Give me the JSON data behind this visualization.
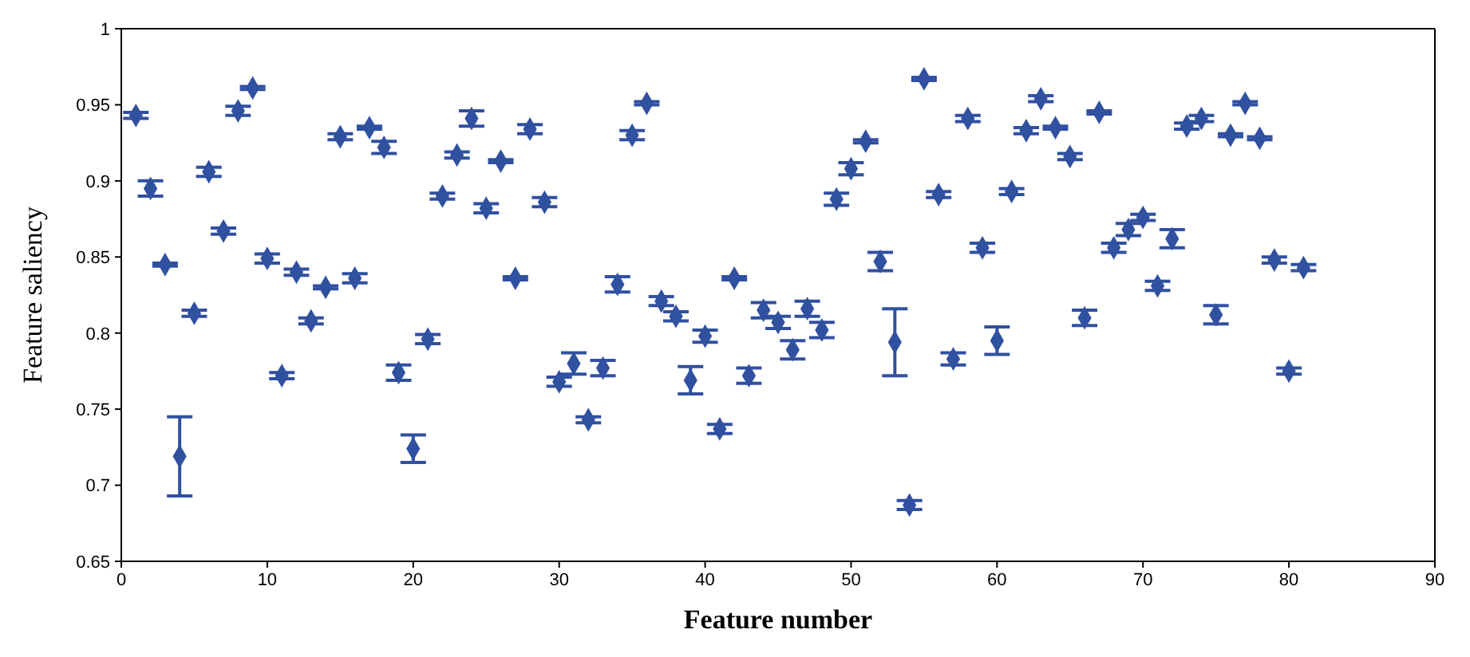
{
  "chart_data": {
    "type": "scatter",
    "xlabel": "Feature number",
    "ylabel": "Feature saliency",
    "x": [
      1,
      2,
      3,
      4,
      5,
      6,
      7,
      8,
      9,
      10,
      11,
      12,
      13,
      14,
      15,
      16,
      17,
      18,
      19,
      20,
      21,
      22,
      23,
      24,
      25,
      26,
      27,
      28,
      29,
      30,
      31,
      32,
      33,
      34,
      35,
      36,
      37,
      38,
      39,
      40,
      41,
      42,
      43,
      44,
      45,
      46,
      47,
      48,
      49,
      50,
      51,
      52,
      53,
      54,
      55,
      56,
      57,
      58,
      59,
      60,
      61,
      62,
      63,
      64,
      65,
      66,
      67,
      68,
      69,
      70,
      71,
      72,
      73,
      74,
      75,
      76,
      77,
      78,
      79,
      80,
      81
    ],
    "series": [
      {
        "color": "#3050a0",
        "values": [
          0.943,
          0.895,
          0.845,
          0.719,
          0.813,
          0.906,
          0.867,
          0.946,
          0.961,
          0.849,
          0.772,
          0.84,
          0.808,
          0.83,
          0.929,
          0.836,
          0.935,
          0.922,
          0.774,
          0.724,
          0.796,
          0.89,
          0.917,
          0.941,
          0.882,
          0.913,
          0.836,
          0.934,
          0.886,
          0.768,
          0.78,
          0.743,
          0.777,
          0.832,
          0.93,
          0.951,
          0.821,
          0.811,
          0.769,
          0.798,
          0.737,
          0.836,
          0.772,
          0.815,
          0.807,
          0.789,
          0.816,
          0.802,
          0.888,
          0.908,
          0.926,
          0.847,
          0.794,
          0.687,
          0.967,
          0.891,
          0.783,
          0.941,
          0.856,
          0.795,
          0.893,
          0.933,
          0.954,
          0.935,
          0.916,
          0.81,
          0.945,
          0.856,
          0.868,
          0.876,
          0.831,
          0.862,
          0.936,
          0.941,
          0.812,
          0.93,
          0.951,
          0.928,
          0.848,
          0.775,
          0.843
        ],
        "errors": [
          0.002,
          0.005,
          0.001,
          0.026,
          0.002,
          0.003,
          0.002,
          0.003,
          0.001,
          0.003,
          0.002,
          0.002,
          0.002,
          0.001,
          0.002,
          0.003,
          0.001,
          0.004,
          0.005,
          0.009,
          0.003,
          0.002,
          0.002,
          0.005,
          0.003,
          0.001,
          0.001,
          0.003,
          0.003,
          0.003,
          0.007,
          0.002,
          0.005,
          0.005,
          0.003,
          0.001,
          0.003,
          0.003,
          0.009,
          0.004,
          0.003,
          0.001,
          0.005,
          0.005,
          0.004,
          0.006,
          0.005,
          0.005,
          0.004,
          0.004,
          0.001,
          0.006,
          0.022,
          0.003,
          0.001,
          0.002,
          0.004,
          0.002,
          0.003,
          0.009,
          0.002,
          0.002,
          0.002,
          0.001,
          0.002,
          0.005,
          0.001,
          0.003,
          0.004,
          0.002,
          0.003,
          0.006,
          0.002,
          0.002,
          0.006,
          0.001,
          0.001,
          0.001,
          0.002,
          0.002,
          0.002
        ]
      }
    ],
    "xlim": [
      0,
      90
    ],
    "xticks": [
      0,
      10,
      20,
      30,
      40,
      50,
      60,
      70,
      80,
      90
    ],
    "ylim": [
      0.65,
      1
    ],
    "yticks": [
      0.65,
      0.7,
      0.75,
      0.8,
      0.85,
      0.9,
      0.95,
      1
    ],
    "marker": "diamond",
    "legend": false
  }
}
